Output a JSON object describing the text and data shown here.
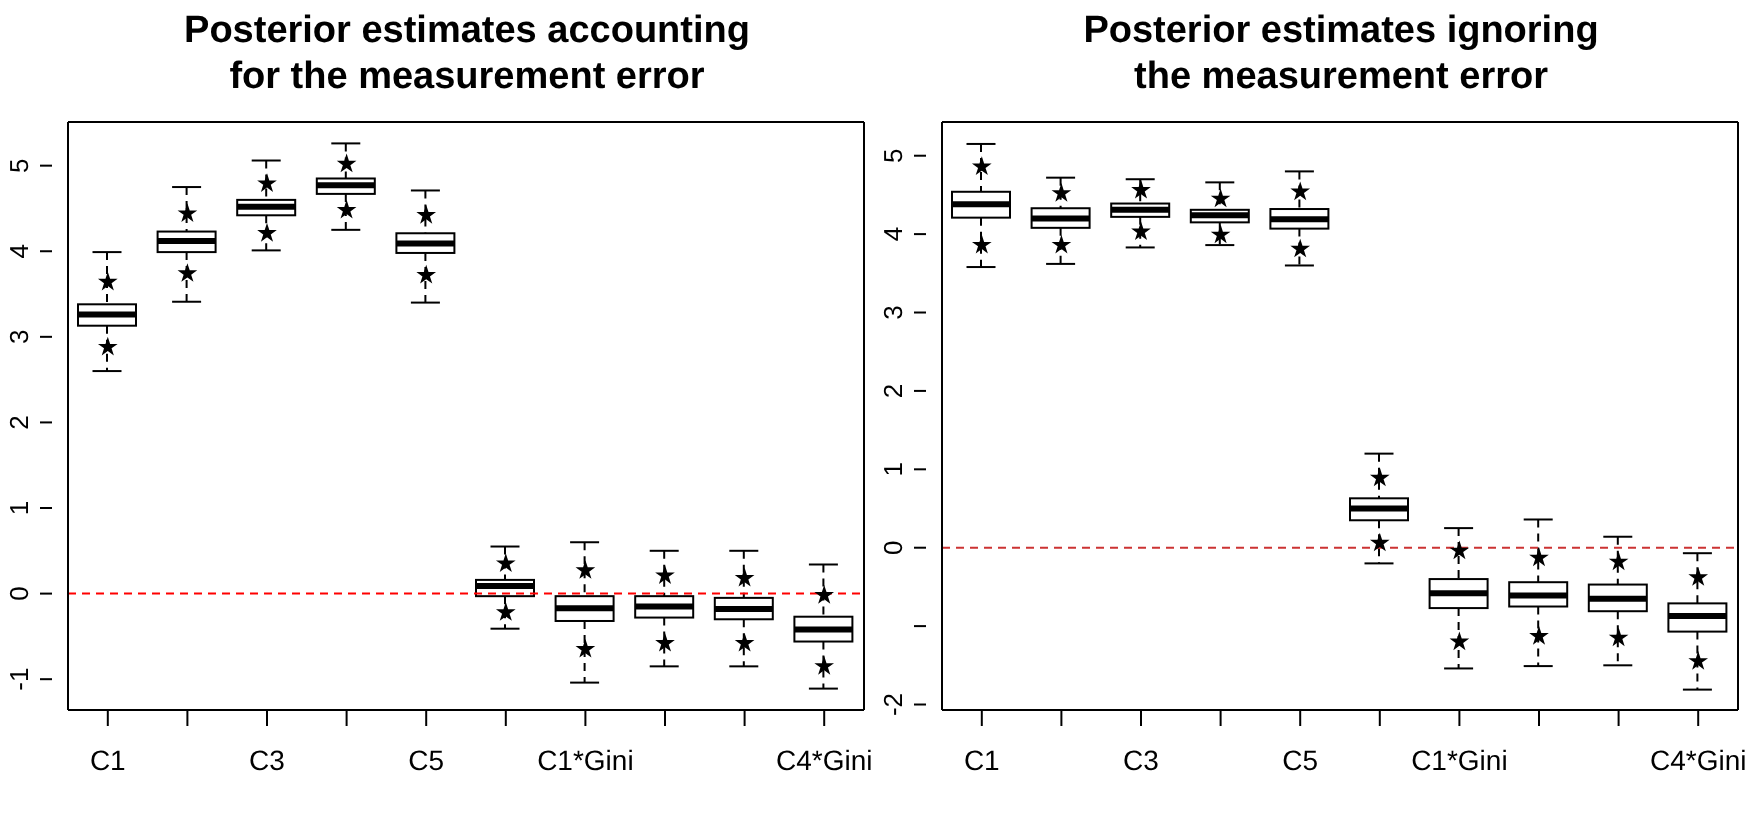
{
  "chart_data": [
    {
      "type": "box",
      "title": "Posterior estimates accounting\nfor the measurement error",
      "categories": [
        "C1",
        null,
        "C3",
        null,
        "C5",
        null,
        "C1*Gini",
        null,
        null,
        "C4*Gini"
      ],
      "ylim": [
        -1.36,
        5.51
      ],
      "yticks": [
        -1,
        0,
        1,
        2,
        3,
        4,
        5
      ],
      "marker": "star",
      "boxes": [
        {
          "low": 2.6,
          "q1": 3.13,
          "median": 3.26,
          "q3": 3.38,
          "high": 3.99
        },
        {
          "low": 3.41,
          "q1": 3.99,
          "median": 4.12,
          "q3": 4.23,
          "high": 4.75
        },
        {
          "low": 4.01,
          "q1": 4.42,
          "median": 4.52,
          "q3": 4.6,
          "high": 5.06
        },
        {
          "low": 4.25,
          "q1": 4.67,
          "median": 4.77,
          "q3": 4.85,
          "high": 5.26
        },
        {
          "low": 3.4,
          "q1": 3.98,
          "median": 4.09,
          "q3": 4.21,
          "high": 4.71
        },
        {
          "low": -0.41,
          "q1": -0.03,
          "median": 0.09,
          "q3": 0.16,
          "high": 0.55
        },
        {
          "low": -1.04,
          "q1": -0.32,
          "median": -0.17,
          "q3": -0.03,
          "high": 0.6
        },
        {
          "low": -0.85,
          "q1": -0.28,
          "median": -0.15,
          "q3": -0.03,
          "high": 0.5
        },
        {
          "low": -0.85,
          "q1": -0.3,
          "median": -0.18,
          "q3": -0.05,
          "high": 0.5
        },
        {
          "low": -1.11,
          "q1": -0.56,
          "median": -0.42,
          "q3": -0.27,
          "high": 0.34
        }
      ],
      "series": [
        {
          "type": "scatter",
          "color": "#000000",
          "values": [
            3.64,
            4.44,
            4.79,
            5.02,
            4.42,
            0.35,
            0.27,
            0.21,
            0.18,
            -0.02
          ]
        },
        {
          "type": "scatter",
          "color": "#000000",
          "values": [
            2.88,
            3.74,
            4.21,
            4.48,
            3.72,
            -0.22,
            -0.65,
            -0.58,
            -0.58,
            -0.85
          ]
        }
      ],
      "ref_lines": [
        {
          "axis": "y",
          "value": 0,
          "color": "#ff0000",
          "line_style": "dashed"
        }
      ]
    },
    {
      "type": "box",
      "title": "Posterior estimates ignoring\nthe measurement error",
      "categories": [
        "C1",
        null,
        "C3",
        null,
        "C5",
        null,
        "C1*Gini",
        null,
        null,
        "C4*Gini"
      ],
      "ylim": [
        -2.07,
        5.43
      ],
      "yticks": [
        -2,
        {
          "value": -1,
          "label": null
        },
        0,
        1,
        2,
        3,
        4,
        5
      ],
      "marker": "star",
      "boxes": [
        {
          "low": 3.58,
          "q1": 4.21,
          "median": 4.38,
          "q3": 4.54,
          "high": 5.15
        },
        {
          "low": 3.62,
          "q1": 4.08,
          "median": 4.2,
          "q3": 4.33,
          "high": 4.72
        },
        {
          "low": 3.83,
          "q1": 4.22,
          "median": 4.31,
          "q3": 4.39,
          "high": 4.7
        },
        {
          "low": 3.86,
          "q1": 4.15,
          "median": 4.24,
          "q3": 4.31,
          "high": 4.66
        },
        {
          "low": 3.6,
          "q1": 4.07,
          "median": 4.19,
          "q3": 4.32,
          "high": 4.8
        },
        {
          "low": -0.2,
          "q1": 0.35,
          "median": 0.5,
          "q3": 0.63,
          "high": 1.2
        },
        {
          "low": -1.54,
          "q1": -0.77,
          "median": -0.58,
          "q3": -0.4,
          "high": 0.25
        },
        {
          "low": -1.51,
          "q1": -0.75,
          "median": -0.61,
          "q3": -0.44,
          "high": 0.36
        },
        {
          "low": -1.5,
          "q1": -0.81,
          "median": -0.65,
          "q3": -0.47,
          "high": 0.14
        },
        {
          "low": -1.81,
          "q1": -1.07,
          "median": -0.87,
          "q3": -0.71,
          "high": -0.07
        }
      ],
      "series": [
        {
          "type": "scatter",
          "color": "#000000",
          "values": [
            4.86,
            4.52,
            4.56,
            4.45,
            4.54,
            0.89,
            -0.04,
            -0.13,
            -0.18,
            -0.38
          ]
        },
        {
          "type": "scatter",
          "color": "#000000",
          "values": [
            3.86,
            3.86,
            4.03,
            3.99,
            3.81,
            0.06,
            -1.2,
            -1.13,
            -1.15,
            -1.45
          ]
        }
      ],
      "ref_lines": [
        {
          "axis": "y",
          "value": 0,
          "color": "#cc3333",
          "line_style": "dashed"
        }
      ]
    }
  ]
}
